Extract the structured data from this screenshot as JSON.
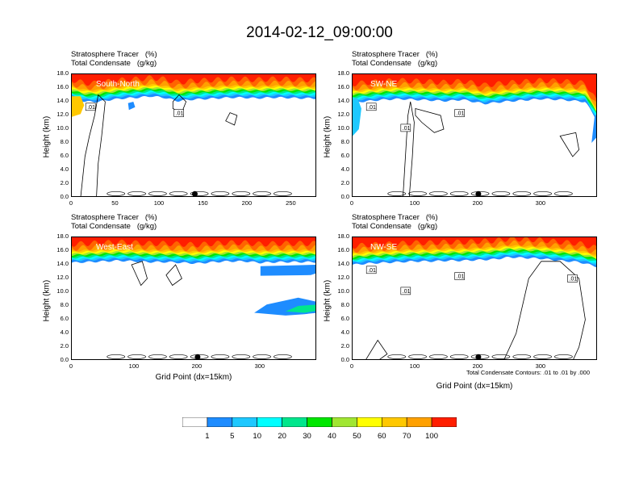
{
  "title": "2014-02-12_09:00:00",
  "panel_text": {
    "line1": "Stratosphere Tracer   (%)",
    "line2": "Total Condensate   (g/kg)"
  },
  "y_axis_label": "Height (km)",
  "x_axis_label": "Grid Point (dx=15km)",
  "contour_note": "Total Condensate Contours: .01 to .01 by .000",
  "colors": {
    "levels": [
      "#ffffff",
      "#1e8cff",
      "#1ec8ff",
      "#00ffff",
      "#00e68c",
      "#00e600",
      "#a0e632",
      "#ffff00",
      "#ffc800",
      "#ffa000",
      "#ff6400",
      "#ff1e00"
    ],
    "contour": "#000000"
  },
  "colorbar": {
    "labels": [
      "1",
      "5",
      "10",
      "20",
      "30",
      "40",
      "50",
      "60",
      "70",
      "100"
    ]
  },
  "chart_data": [
    {
      "type": "heatmap",
      "name": "South-North",
      "xlim": [
        0,
        279
      ],
      "ylim": [
        0,
        18
      ],
      "xticks": [
        0,
        50,
        100,
        150,
        200,
        250
      ],
      "yticks": [
        0,
        2,
        4,
        6,
        8,
        10,
        12,
        14,
        16,
        18
      ],
      "tropopause_km": [
        15.4,
        14.9,
        14.9,
        15.2,
        15.4,
        15.5,
        15.7,
        15.5,
        15.0,
        15.2,
        15.3,
        15.4,
        15.5,
        15.5,
        15.4,
        15.5,
        15.5,
        15.4,
        15.4
      ],
      "tropopause_x": [
        0,
        15,
        30,
        45,
        60,
        75,
        90,
        105,
        120,
        135,
        150,
        165,
        180,
        195,
        210,
        225,
        240,
        260,
        279
      ],
      "contour_labels": [
        ".01",
        ".01"
      ],
      "marker_x": 140
    },
    {
      "type": "heatmap",
      "name": "SW-NE",
      "xlim": [
        0,
        390
      ],
      "ylim": [
        0,
        18
      ],
      "xticks": [
        0,
        100,
        200,
        300
      ],
      "yticks": [
        0,
        2,
        4,
        6,
        8,
        10,
        12,
        14,
        16,
        18
      ],
      "tropopause_km": [
        14.8,
        15.0,
        15.2,
        15.3,
        15.2,
        15.1,
        15.0,
        15.2,
        14.6,
        14.9,
        15.1,
        15.3,
        15.2,
        15.0,
        14.9,
        12.0
      ],
      "tropopause_x": [
        0,
        25,
        50,
        75,
        100,
        125,
        150,
        175,
        210,
        240,
        270,
        300,
        330,
        355,
        370,
        390
      ],
      "contour_labels": [
        ".01",
        ".01",
        ".01"
      ],
      "marker_x": 200
    },
    {
      "type": "heatmap",
      "name": "West-East",
      "xlim": [
        0,
        390
      ],
      "ylim": [
        0,
        18
      ],
      "xticks": [
        0,
        100,
        200,
        300
      ],
      "yticks": [
        0,
        2,
        4,
        6,
        8,
        10,
        12,
        14,
        16,
        18
      ],
      "tropopause_km": [
        15.2,
        15.3,
        15.4,
        15.5,
        15.4,
        15.3,
        15.3,
        15.2,
        15.1,
        15.3,
        15.4,
        15.4,
        15.2,
        15.3,
        15.3
      ],
      "tropopause_x": [
        0,
        25,
        50,
        75,
        100,
        125,
        150,
        175,
        200,
        225,
        250,
        275,
        300,
        330,
        390
      ],
      "contour_labels": [],
      "marker_x": 200
    },
    {
      "type": "heatmap",
      "name": "NW-SE",
      "xlim": [
        0,
        390
      ],
      "ylim": [
        0,
        18
      ],
      "xticks": [
        0,
        100,
        200,
        300
      ],
      "yticks": [
        0,
        2,
        4,
        6,
        8,
        10,
        12,
        14,
        16,
        18
      ],
      "tropopause_km": [
        14.9,
        15.1,
        15.2,
        15.3,
        15.4,
        15.4,
        15.5,
        15.5,
        15.6,
        15.7,
        16.0,
        15.8,
        15.5,
        15.3,
        14.6
      ],
      "tropopause_x": [
        0,
        25,
        50,
        75,
        100,
        125,
        150,
        175,
        200,
        225,
        250,
        300,
        330,
        360,
        390
      ],
      "contour_labels": [
        ".01",
        ".01",
        ".01",
        ".01"
      ],
      "marker_x": 200
    }
  ]
}
